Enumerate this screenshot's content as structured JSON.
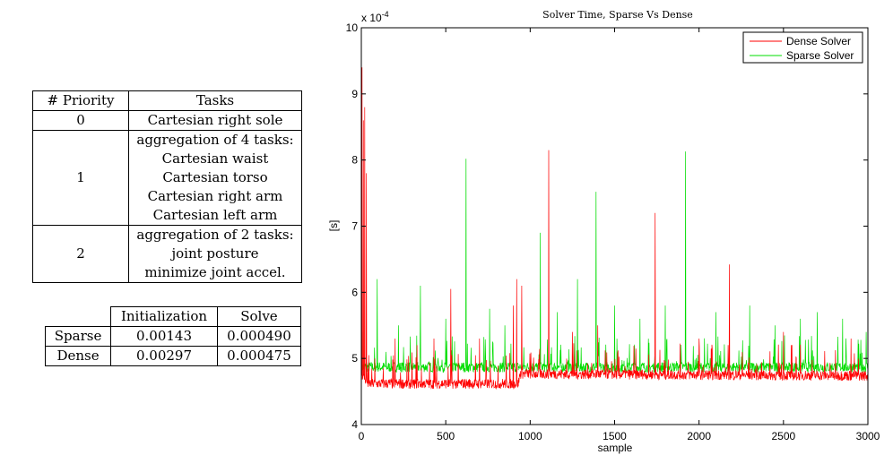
{
  "priority_table": {
    "headers": [
      "# Priority",
      "Tasks"
    ],
    "rows": [
      {
        "priority": "0",
        "tasks": [
          "Cartesian right sole"
        ]
      },
      {
        "priority": "1",
        "tasks": [
          "aggregation of 4 tasks:",
          "Cartesian waist",
          "Cartesian torso",
          "Cartesian right arm",
          "Cartesian left arm"
        ]
      },
      {
        "priority": "2",
        "tasks": [
          "aggregation of 2 tasks:",
          "joint posture",
          "minimize joint accel."
        ]
      }
    ]
  },
  "timing_table": {
    "headers": [
      "",
      "Initialization",
      "Solve"
    ],
    "rows": [
      {
        "label": "Sparse",
        "init": "0.00143",
        "solve": "0.000490"
      },
      {
        "label": "Dense",
        "init": "0.00297",
        "solve": "0.000475"
      }
    ]
  },
  "chart_data": {
    "type": "line",
    "title": "Solver Time, Sparse Vs Dense",
    "xlabel": "sample",
    "ylabel": "[s]",
    "y_multiplier": "x 10",
    "y_multiplier_exp": "-4",
    "xlim": [
      0,
      3000
    ],
    "ylim": [
      4,
      10
    ],
    "xticks": [
      "0",
      "500",
      "1000",
      "1500",
      "2000",
      "2500",
      "3000"
    ],
    "yticks": [
      "4",
      "5",
      "6",
      "7",
      "8",
      "9",
      "10"
    ],
    "grid": false,
    "legend_position": "top-right",
    "series": [
      {
        "name": "Dense Solver",
        "color": "#ff0000",
        "baseline": [
          [
            0,
            4.75
          ],
          [
            40,
            4.6
          ],
          [
            930,
            4.6
          ],
          [
            940,
            4.75
          ],
          [
            3000,
            4.72
          ]
        ],
        "spikes": [
          [
            5,
            9.4
          ],
          [
            12,
            8.6
          ],
          [
            20,
            8.8
          ],
          [
            30,
            7.8
          ],
          [
            80,
            5.0
          ],
          [
            200,
            5.3
          ],
          [
            330,
            5.2
          ],
          [
            430,
            5.3
          ],
          [
            530,
            6.05
          ],
          [
            700,
            5.3
          ],
          [
            900,
            5.8
          ],
          [
            920,
            6.2
          ],
          [
            950,
            6.1
          ],
          [
            1110,
            8.15
          ],
          [
            1250,
            5.4
          ],
          [
            1400,
            5.5
          ],
          [
            1740,
            7.2
          ],
          [
            2000,
            5.3
          ],
          [
            2180,
            6.42
          ],
          [
            2500,
            5.4
          ],
          [
            2900,
            5.3
          ]
        ]
      },
      {
        "name": "Sparse Solver",
        "color": "#00dd00",
        "baseline": [
          [
            0,
            4.85
          ],
          [
            3000,
            4.85
          ]
        ],
        "spikes": [
          [
            5,
            5.4
          ],
          [
            95,
            6.2
          ],
          [
            220,
            5.5
          ],
          [
            350,
            6.1
          ],
          [
            500,
            5.6
          ],
          [
            620,
            8.02
          ],
          [
            760,
            5.75
          ],
          [
            850,
            5.5
          ],
          [
            1060,
            6.9
          ],
          [
            1160,
            5.7
          ],
          [
            1280,
            6.2
          ],
          [
            1390,
            7.52
          ],
          [
            1500,
            5.8
          ],
          [
            1650,
            5.6
          ],
          [
            1800,
            5.8
          ],
          [
            1920,
            8.13
          ],
          [
            2100,
            5.7
          ],
          [
            2300,
            5.8
          ],
          [
            2450,
            5.5
          ],
          [
            2600,
            5.6
          ],
          [
            2700,
            5.7
          ],
          [
            2850,
            5.6
          ],
          [
            2990,
            5.4
          ]
        ]
      }
    ]
  }
}
